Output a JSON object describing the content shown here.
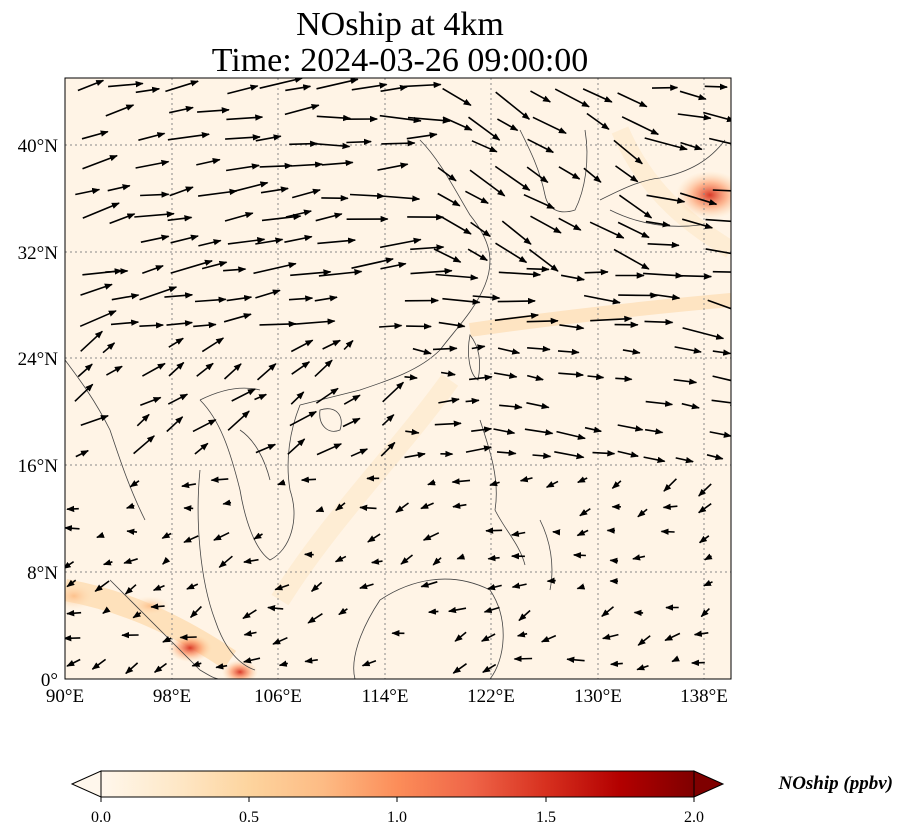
{
  "title": {
    "line1": "NOship at 4km",
    "line2": "Time: 2024-03-26 09:00:00"
  },
  "map": {
    "lon_range": [
      90,
      140
    ],
    "lat_range": [
      0,
      45
    ],
    "gridlines": true,
    "x_ticks": [
      "90°E",
      "98°E",
      "106°E",
      "114°E",
      "122°E",
      "130°E",
      "138°E"
    ],
    "y_ticks": [
      "0°",
      "8°N",
      "16°N",
      "24°N",
      "32°N",
      "40°N"
    ],
    "wind_vectors": true
  },
  "colorbar": {
    "label": "NOship (ppbv)",
    "colormap": "OrRd",
    "range": [
      0.0,
      2.0
    ],
    "ticks": [
      "0.0",
      "0.5",
      "1.0",
      "1.5",
      "2.0"
    ],
    "extend": "both",
    "colors": [
      "#fff7ec",
      "#fee8c8",
      "#fdd49e",
      "#fdbb84",
      "#fc8d59",
      "#ef6548",
      "#d7301f",
      "#b30000",
      "#7f0000"
    ]
  },
  "hotspots": [
    {
      "region": "Strait of Malacca / Singapore",
      "value": "high"
    },
    {
      "region": "Japan coast",
      "value": "high"
    },
    {
      "region": "Andaman Sea",
      "value": "moderate"
    }
  ]
}
